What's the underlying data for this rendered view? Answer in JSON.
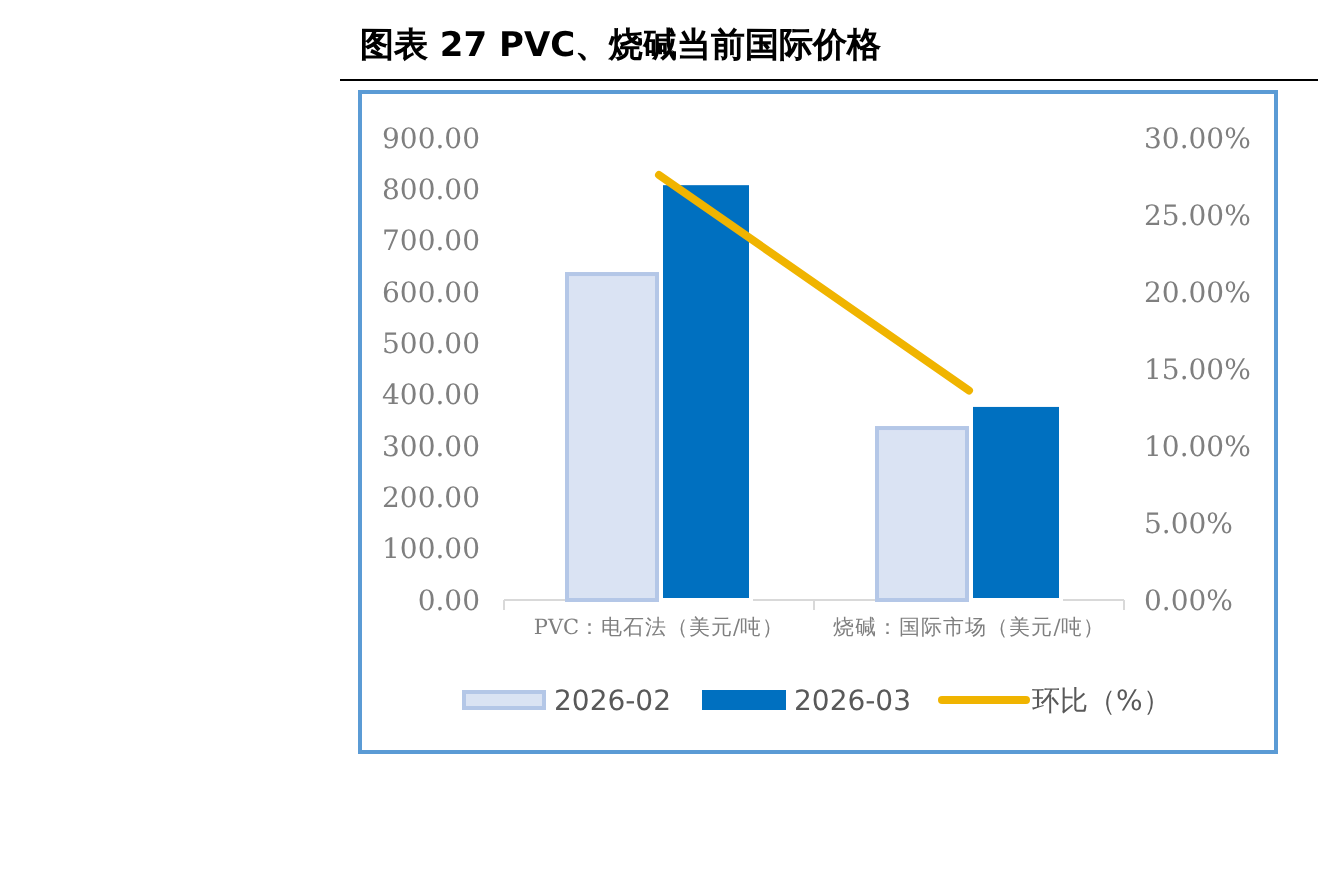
{
  "chart_data": {
    "type": "bar",
    "title": "图表 27  PVC、烧碱当前国际价格",
    "categories": [
      "PVC：电石法（美元/吨）",
      "烧碱：国际市场（美元/吨）"
    ],
    "series": [
      {
        "name": "2026-02",
        "color": "#dae3f3",
        "values": [
          635,
          335
        ]
      },
      {
        "name": "2026-03",
        "color": "#0070c0",
        "values": [
          812,
          380
        ]
      },
      {
        "name": "环比（%）",
        "type": "line",
        "axis": "y2",
        "color": "#f0b400",
        "values": [
          27.6,
          13.6
        ]
      }
    ],
    "ylim": [
      0,
      900
    ],
    "yticks": [
      {
        "value": 0,
        "label": "0.00"
      },
      {
        "value": 100,
        "label": "100.00"
      },
      {
        "value": 200,
        "label": "200.00"
      },
      {
        "value": 300,
        "label": "300.00"
      },
      {
        "value": 400,
        "label": "400.00"
      },
      {
        "value": 500,
        "label": "500.00"
      },
      {
        "value": 600,
        "label": "600.00"
      },
      {
        "value": 700,
        "label": "700.00"
      },
      {
        "value": 800,
        "label": "800.00"
      },
      {
        "value": 900,
        "label": "900.00"
      }
    ],
    "y2lim": [
      0,
      30
    ],
    "y2ticks": [
      {
        "value": 0,
        "label": "0.00%"
      },
      {
        "value": 5,
        "label": "5.00%"
      },
      {
        "value": 10,
        "label": "10.00%"
      },
      {
        "value": 15,
        "label": "15.00%"
      },
      {
        "value": 20,
        "label": "20.00%"
      },
      {
        "value": 25,
        "label": "25.00%"
      },
      {
        "value": 30,
        "label": "30.00%"
      }
    ],
    "grid": false,
    "legend": "bottom"
  }
}
